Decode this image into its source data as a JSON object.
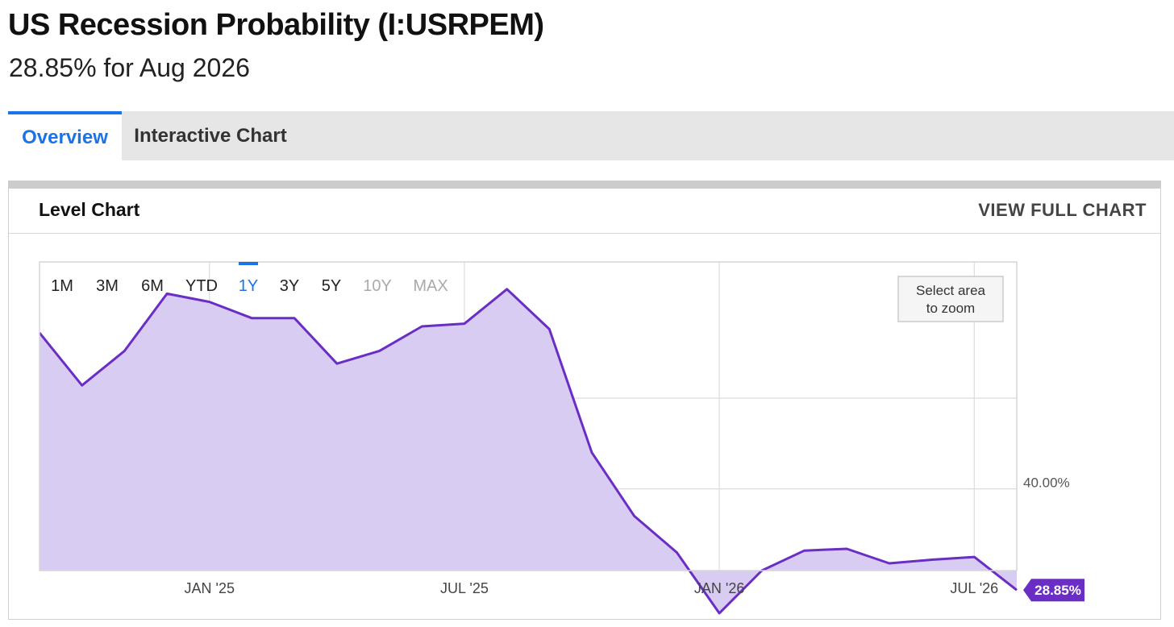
{
  "header": {
    "title": "US Recession Probability (I:USRPEM)",
    "subtitle": "28.85% for Aug 2026"
  },
  "tabs": [
    {
      "label": "Overview",
      "active": true
    },
    {
      "label": "Interactive Chart",
      "active": false
    }
  ],
  "panel": {
    "title": "Level Chart",
    "view_full_label": "VIEW FULL CHART"
  },
  "range_buttons": [
    {
      "label": "1M",
      "state": "enabled"
    },
    {
      "label": "3M",
      "state": "enabled"
    },
    {
      "label": "6M",
      "state": "enabled"
    },
    {
      "label": "YTD",
      "state": "enabled"
    },
    {
      "label": "1Y",
      "state": "active"
    },
    {
      "label": "3Y",
      "state": "enabled"
    },
    {
      "label": "5Y",
      "state": "enabled"
    },
    {
      "label": "10Y",
      "state": "disabled"
    },
    {
      "label": "MAX",
      "state": "disabled"
    }
  ],
  "zoom_hint": [
    "Select area",
    "to zoom"
  ],
  "colors": {
    "line": "#6a2ec4",
    "fill": "#d9ccf3",
    "active_tab": "#1a73e8",
    "grid": "#dcdcdc",
    "badge": "#6a2ec4"
  },
  "chart_data": {
    "type": "area",
    "x": [
      "2024-09",
      "2024-10",
      "2024-11",
      "2024-12",
      "2025-01",
      "2025-02",
      "2025-03",
      "2025-04",
      "2025-05",
      "2025-06",
      "2025-07",
      "2025-08",
      "2025-09",
      "2025-10",
      "2025-11",
      "2025-12",
      "2026-01",
      "2026-02",
      "2026-03",
      "2026-04",
      "2026-05",
      "2026-06",
      "2026-07",
      "2026-08"
    ],
    "series": [
      {
        "values": [
          57.2,
          51.4,
          55.2,
          61.5,
          60.6,
          58.8,
          58.8,
          53.8,
          55.2,
          57.9,
          58.2,
          62.0,
          57.6,
          44.0,
          37.0,
          33.0,
          26.3,
          31.0,
          33.2,
          33.4,
          31.8,
          32.2,
          32.5,
          28.85
        ]
      }
    ],
    "x_ticks": [
      {
        "x": "2025-01",
        "label": "JAN '25"
      },
      {
        "x": "2025-07",
        "label": "JUL '25"
      },
      {
        "x": "2026-01",
        "label": "JAN '26"
      },
      {
        "x": "2026-07",
        "label": "JUL '26"
      }
    ],
    "y_gridlines": [
      40,
      50
    ],
    "y_tick_labels": [
      {
        "y": 40,
        "label": "40.00%"
      }
    ],
    "last_value_label": "28.85%",
    "ylim": [
      31,
      65
    ]
  }
}
